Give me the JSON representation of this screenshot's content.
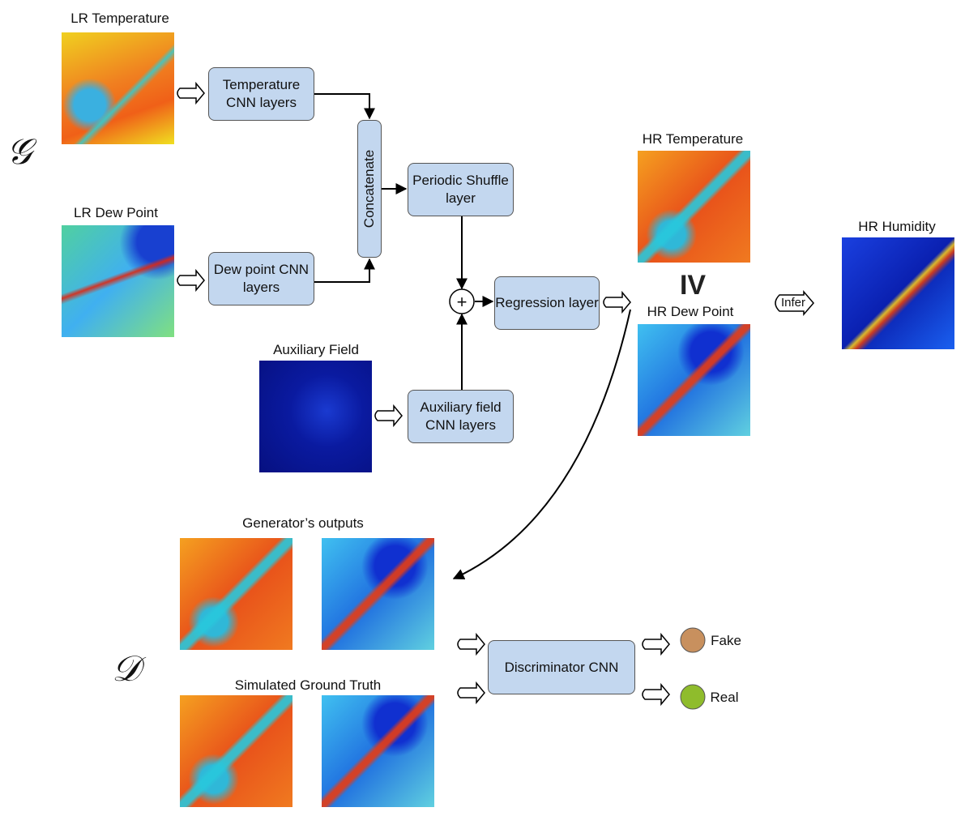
{
  "generator": {
    "symbol": "𝒢",
    "inputs": [
      {
        "label": "LR Temperature"
      },
      {
        "label": "LR Dew Point"
      },
      {
        "label": "Auxiliary Field"
      }
    ],
    "blocks": {
      "temp_cnn": "Temperature CNN layers",
      "dew_cnn": "Dew point CNN layers",
      "concat": "Concatenate",
      "shuffle": "Periodic Shuffle layer",
      "aux_cnn": "Auxiliary field CNN layers",
      "regression": "Regression layer",
      "plus": "+"
    },
    "outputs": [
      {
        "label": "HR Temperature"
      },
      {
        "label": "HR Dew Point"
      }
    ],
    "iv_label": "IV",
    "infer_label": "Infer",
    "humidity_label": "HR Humidity"
  },
  "discriminator": {
    "symbol": "𝒟",
    "gen_outputs_label": "Generator’s outputs",
    "ground_truth_label": "Simulated Ground Truth",
    "block": "Discriminator CNN",
    "results": [
      {
        "label": "Fake",
        "color": "#c8905e"
      },
      {
        "label": "Real",
        "color": "#8fbc2c"
      }
    ]
  },
  "colors": {
    "block_fill": "#c3d7ef",
    "block_border": "#555555"
  }
}
